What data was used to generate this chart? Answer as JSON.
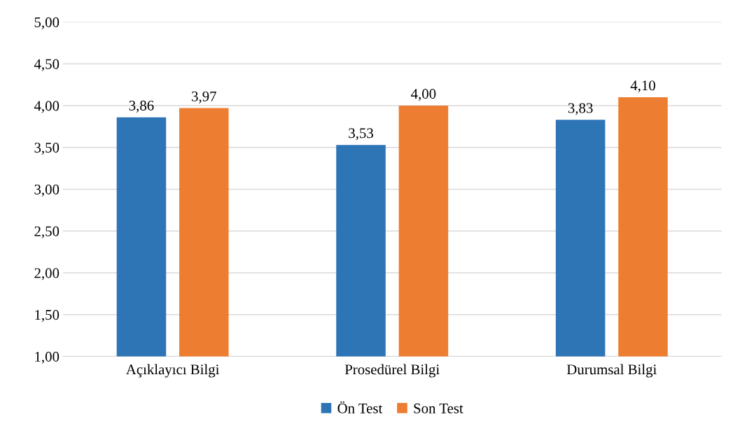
{
  "chart_data": {
    "type": "bar",
    "categories": [
      "Açıklayıcı Bilgi",
      "Prosedürel Bilgi",
      "Durumsal Bilgi"
    ],
    "series": [
      {
        "name": "Ön Test",
        "color": "#2e75b6",
        "values": [
          3.86,
          3.53,
          3.83
        ],
        "value_labels": [
          "3,86",
          "3,53",
          "3,83"
        ]
      },
      {
        "name": "Son Test",
        "color": "#ed7d31",
        "values": [
          3.97,
          4.0,
          4.1
        ],
        "value_labels": [
          "3,97",
          "4,00",
          "4,10"
        ]
      }
    ],
    "ylim": [
      1,
      5
    ],
    "yticks": [
      {
        "value": 1,
        "label": "1,00"
      },
      {
        "value": 1.5,
        "label": "1,50"
      },
      {
        "value": 2,
        "label": "2,00"
      },
      {
        "value": 2.5,
        "label": "2,50"
      },
      {
        "value": 3,
        "label": "3,00"
      },
      {
        "value": 3.5,
        "label": "3,50"
      },
      {
        "value": 4,
        "label": "4,00"
      },
      {
        "value": 4.5,
        "label": "4,50"
      },
      {
        "value": 5,
        "label": "5,00"
      }
    ],
    "grid": "y",
    "legend": "bottom"
  }
}
